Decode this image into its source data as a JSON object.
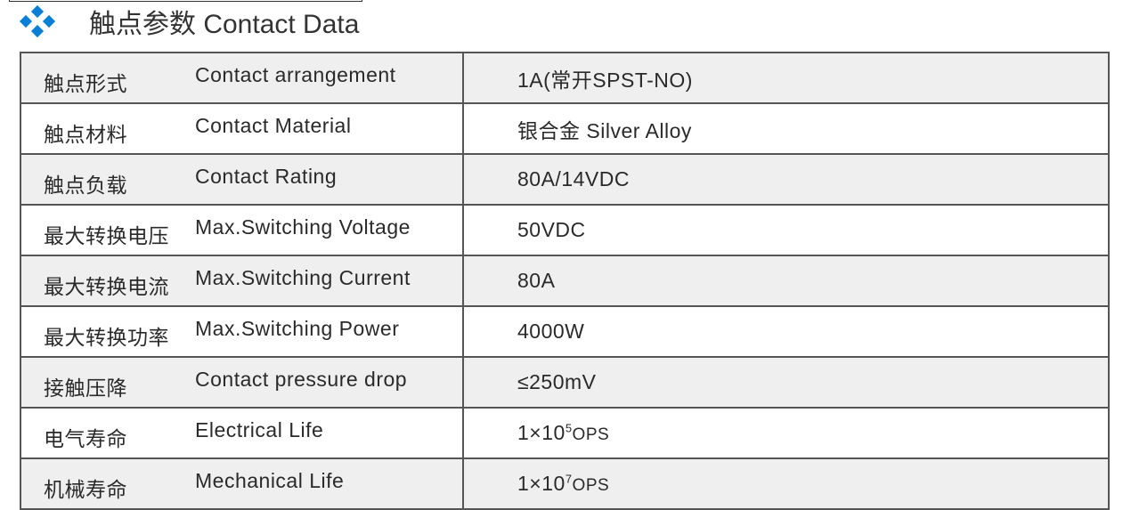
{
  "title": "触点参数 Contact Data",
  "icon": "diamond-cluster-icon",
  "accent": "#0a7fd6",
  "rows": [
    {
      "cn": "触点形式",
      "en": "Contact  arrangement",
      "value": "1A(常开SPST-NO)"
    },
    {
      "cn": "触点材料",
      "en": "Contact  Material",
      "value": "银合金   Silver Alloy"
    },
    {
      "cn": "触点负载",
      "en": "Contact  Rating",
      "value": "80A/14VDC"
    },
    {
      "cn": "最大转换电压",
      "en": "Max.Switching Voltage",
      "value": "50VDC"
    },
    {
      "cn": "最大转换电流",
      "en": "Max.Switching Current",
      "value": "80A"
    },
    {
      "cn": "最大转换功率",
      "en": "Max.Switching Power",
      "value": "4000W"
    },
    {
      "cn": "接触压降",
      "en": "Contact pressure drop",
      "value": "≤250mV"
    },
    {
      "cn": "电气寿命",
      "en": "Electrical Life",
      "value_base": "1×10",
      "value_exp": "5",
      "value_unit": "OPS"
    },
    {
      "cn": "机械寿命",
      "en": "Mechanical Life",
      "value_base": "1×10",
      "value_exp": "7",
      "value_unit": "OPS"
    }
  ]
}
